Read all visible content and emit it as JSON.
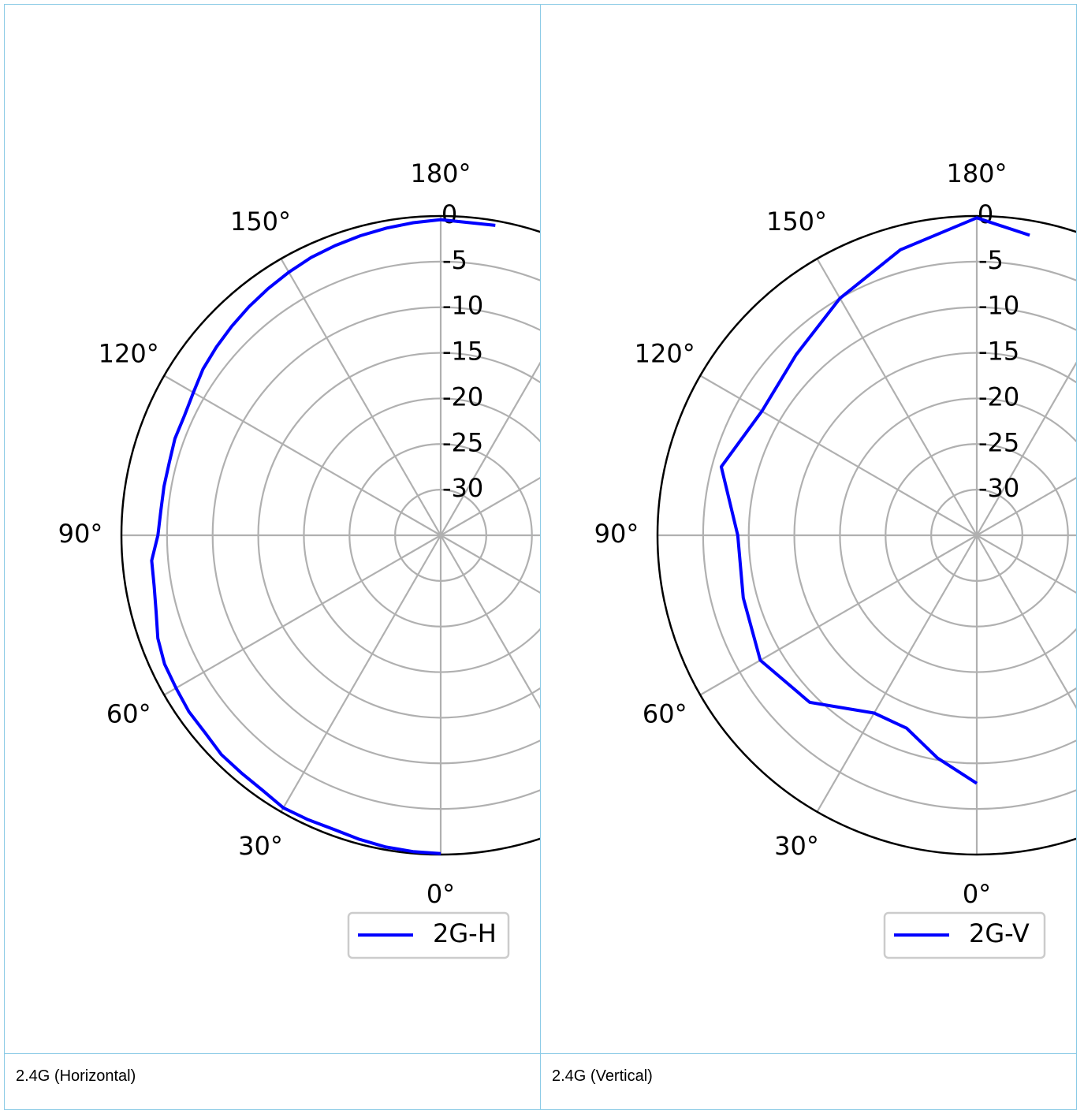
{
  "panels": [
    {
      "caption": "2.4G (Horizontal)"
    },
    {
      "caption": "2.4G (Vertical)"
    }
  ],
  "chart_data": [
    {
      "type": "polar-line",
      "title": "",
      "theta_zero_location": "bottom",
      "theta_direction": "clockwise",
      "theta_ticks": [
        0,
        30,
        60,
        90,
        120,
        150,
        180
      ],
      "theta_tick_labels": [
        "0°",
        "30°",
        "60°",
        "90°",
        "120°",
        "150°",
        "180°"
      ],
      "r_range": [
        -35,
        0
      ],
      "r_ticks": [
        0,
        -5,
        -10,
        -15,
        -20,
        -25,
        -30
      ],
      "r_tick_labels": [
        "0",
        "-5",
        "-10",
        "-15",
        "-20",
        "-25",
        "-30"
      ],
      "grid": true,
      "legend": "bottom-right",
      "series": [
        {
          "name": "2G-H",
          "color": "#0000ff",
          "theta": [
            0,
            5,
            10,
            15,
            20,
            25,
            30,
            35,
            40,
            45,
            50,
            55,
            60,
            65,
            70,
            75,
            80,
            85,
            90,
            95,
            100,
            105,
            110,
            115,
            120,
            125,
            130,
            135,
            140,
            145,
            150,
            155,
            160,
            165,
            170,
            175,
            180,
            190
          ],
          "values": [
            -0.1,
            -0.2,
            -0.3,
            -0.5,
            -0.7,
            -0.6,
            -0.5,
            -0.9,
            -1.0,
            -1.0,
            -1.3,
            -1.3,
            -1.5,
            -1.6,
            -2.0,
            -2.7,
            -3.1,
            -3.2,
            -4.0,
            -4.2,
            -4.2,
            -4.2,
            -4.0,
            -4.0,
            -3.7,
            -3.2,
            -2.9,
            -2.6,
            -2.3,
            -2.0,
            -1.7,
            -1.4,
            -1.2,
            -1.0,
            -0.8,
            -0.6,
            -0.4,
            -0.5
          ]
        },
        {
          "name": "2G-V",
          "color": "#0000ff",
          "theta": [
            0,
            10,
            20,
            30,
            45,
            60,
            75,
            90,
            105,
            120,
            135,
            150,
            165,
            180,
            190
          ],
          "values": [
            -7.8,
            -10.2,
            -12.5,
            -12.5,
            -9.1,
            -7.6,
            -8.5,
            -8.8,
            -6.0,
            -7.8,
            -7.0,
            -5.0,
            -2.6,
            -0.2,
            -1.6
          ]
        }
      ]
    }
  ]
}
